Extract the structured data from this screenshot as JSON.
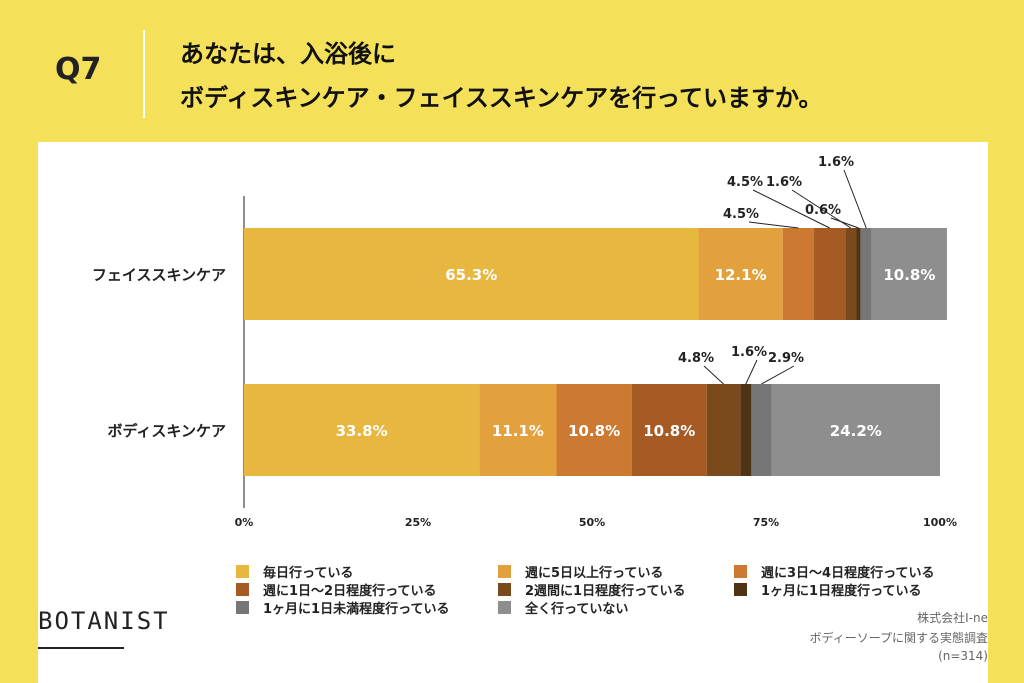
{
  "question": {
    "number": "Q7",
    "line1": "あなたは、入浴後に",
    "line2": "ボディスキンケア・フェイススキンケアを行っていますか。"
  },
  "chart_data": {
    "type": "bar",
    "orientation": "horizontal",
    "stacked": true,
    "categories": [
      "フェイススキンケア",
      "ボディスキンケア"
    ],
    "series": [
      {
        "name": "毎日行っている",
        "values": [
          65.3,
          33.8
        ],
        "color": "#E8B740"
      },
      {
        "name": "週に5日以上行っている",
        "values": [
          12.1,
          11.1
        ],
        "color": "#E2A13D"
      },
      {
        "name": "週に3日〜4日程度行っている",
        "values": [
          4.5,
          10.8
        ],
        "color": "#CC7A32"
      },
      {
        "name": "週に1日〜2日程度行っている",
        "values": [
          4.5,
          10.8
        ],
        "color": "#A65A24"
      },
      {
        "name": "2週間に1日程度行っている",
        "values": [
          1.6,
          4.8
        ],
        "color": "#7A4A1C"
      },
      {
        "name": "1ヶ月に1日程度行っている",
        "values": [
          0.6,
          1.6
        ],
        "color": "#4E3314"
      },
      {
        "name": "1ヶ月に1日未満程度行っている",
        "values": [
          1.6,
          2.9
        ],
        "color": "#767676"
      },
      {
        "name": "全く行っていない",
        "values": [
          10.8,
          24.2
        ],
        "color": "#8E8E8E"
      }
    ],
    "data_labels": [
      [
        "65.3%",
        "12.1%",
        "4.5%",
        "4.5%",
        "1.6%",
        "0.6%",
        "1.6%",
        "10.8%"
      ],
      [
        "33.8%",
        "11.1%",
        "10.8%",
        "10.8%",
        "4.8%",
        "1.6%",
        "2.9%",
        "24.2%"
      ]
    ],
    "xlim": [
      0,
      100
    ],
    "xticks": [
      "0%",
      "25%",
      "50%",
      "75%",
      "100%"
    ],
    "legend_position": "bottom",
    "grid": false
  },
  "logo": "BOTANIST",
  "source": {
    "company": "株式会社I-ne",
    "survey": "ボディーソープに関する実態調査",
    "n": "(n=314)"
  }
}
